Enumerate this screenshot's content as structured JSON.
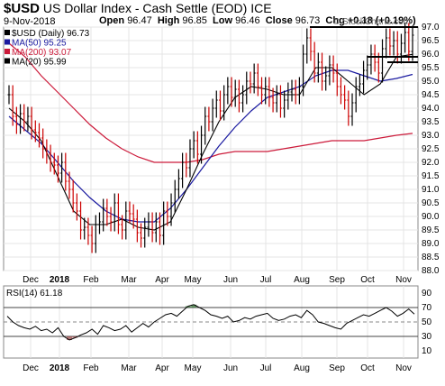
{
  "header": {
    "symbol": "$USD",
    "name": "US Dollar Index - Cash Settle (EOD)",
    "exchange": "ICE",
    "date": "9-Nov-2018",
    "open_label": "Open",
    "open": "96.47",
    "high_label": "High",
    "high": "96.85",
    "low_label": "Low",
    "low": "96.46",
    "close_label": "Close",
    "close": "96.73",
    "chg_label": "Chg",
    "chg": "+0.18 (+0.19%)",
    "copyright": "© StockCharts.com"
  },
  "colors": {
    "up": "#000000",
    "down": "#cc0000",
    "ma50": "#1a1aa0",
    "ma200": "#cc1a3a",
    "ma20": "#000000",
    "rsi_over": "#3a7a3a",
    "rsi_under": "#a05050"
  },
  "chart_data": [
    {
      "type": "line",
      "title": "$USD (Daily) 96.73",
      "legend": [
        {
          "label": "$USD (Daily) 96.73",
          "color": "#000000"
        },
        {
          "label": "MA(50) 95.25",
          "color": "#1a1aa0"
        },
        {
          "label": "MA(200) 93.07",
          "color": "#cc1a3a"
        },
        {
          "label": "MA(20) 95.99",
          "color": "#000000"
        }
      ],
      "legend_position": "top-left",
      "x_tick_labels": [
        "Dec",
        "2018",
        "Feb",
        "Mar",
        "Apr",
        "May",
        "Jun",
        "Jul",
        "Aug",
        "Sep",
        "Oct",
        "Nov"
      ],
      "ylim": [
        88.0,
        97.0
      ],
      "y_ticks": [
        88.0,
        88.5,
        89.0,
        89.5,
        90.0,
        90.5,
        91.0,
        91.5,
        92.0,
        92.5,
        93.0,
        93.5,
        94.0,
        94.5,
        95.0,
        95.5,
        96.0,
        96.5,
        97.0
      ],
      "grid": true,
      "series": [
        {
          "name": "$USD (Daily)",
          "style": "ohlc",
          "values": [
            94.5,
            93.7,
            93.4,
            93.8,
            93.5,
            93.7,
            93.2,
            93.1,
            92.9,
            92.5,
            92.3,
            92.0,
            91.9,
            91.6,
            92.0,
            91.3,
            91.0,
            90.5,
            90.2,
            89.5,
            89.6,
            89.3,
            89.0,
            89.7,
            89.8,
            90.3,
            90.0,
            89.8,
            90.5,
            89.7,
            89.5,
            90.2,
            90.1,
            89.9,
            89.4,
            89.2,
            89.6,
            89.8,
            89.4,
            89.8,
            89.3,
            90.2,
            90.0,
            90.5,
            91.0,
            91.4,
            92.0,
            91.8,
            92.5,
            92.8,
            92.3,
            93.0,
            93.7,
            93.5,
            94.0,
            94.3,
            93.9,
            94.5,
            94.8,
            94.4,
            94.7,
            94.2,
            94.5,
            95.0,
            94.9,
            95.3,
            94.8,
            94.5,
            94.8,
            94.4,
            94.2,
            94.5,
            94.0,
            94.3,
            94.6,
            94.7,
            94.5,
            94.8,
            96.0,
            96.6,
            96.1,
            95.3,
            95.7,
            95.0,
            95.2,
            95.6,
            95.3,
            94.8,
            94.5,
            94.3,
            93.7,
            94.2,
            94.8,
            94.9,
            95.4,
            95.6,
            96.0,
            95.7,
            95.3,
            96.2,
            96.6,
            96.3,
            96.5,
            96.0,
            96.4,
            96.8,
            96.1,
            96.7
          ]
        },
        {
          "name": "MA(50)",
          "values": [
            93.7,
            93.2,
            92.7,
            92.0,
            91.3,
            90.7,
            90.2,
            89.9,
            89.8,
            89.8,
            90.3,
            91.0,
            91.8,
            92.6,
            93.3,
            93.9,
            94.4,
            94.6,
            94.8,
            95.2,
            95.4,
            95.4,
            95.2,
            95.0,
            95.1,
            95.25
          ]
        },
        {
          "name": "MA(200)",
          "values": [
            96.4,
            95.9,
            95.2,
            94.6,
            94.0,
            93.4,
            92.9,
            92.5,
            92.2,
            92.0,
            92.0,
            92.0,
            92.1,
            92.3,
            92.4,
            92.4,
            92.4,
            92.5,
            92.6,
            92.7,
            92.8,
            92.8,
            92.8,
            92.9,
            93.0,
            93.07
          ]
        },
        {
          "name": "MA(20)",
          "values": [
            94.0,
            93.5,
            92.8,
            91.5,
            90.2,
            89.7,
            89.7,
            89.9,
            89.6,
            89.5,
            89.8,
            91.0,
            92.3,
            93.5,
            94.4,
            94.8,
            94.7,
            94.5,
            94.5,
            95.5,
            95.5,
            95.0,
            94.5,
            94.9,
            95.9,
            95.99
          ]
        }
      ]
    },
    {
      "type": "line",
      "title": "RSI(14) 61.18",
      "ylim": [
        0,
        100
      ],
      "y_ticks": [
        10,
        30,
        50,
        70,
        90
      ],
      "reference_lines": [
        30,
        50,
        70
      ],
      "series": [
        {
          "name": "RSI(14)",
          "values": [
            58,
            50,
            45,
            42,
            40,
            44,
            38,
            40,
            35,
            42,
            30,
            25,
            28,
            32,
            35,
            40,
            33,
            45,
            42,
            38,
            40,
            45,
            36,
            42,
            48,
            43,
            50,
            55,
            60,
            62,
            58,
            65,
            72,
            74,
            70,
            66,
            60,
            58,
            55,
            58,
            50,
            52,
            56,
            54,
            58,
            60,
            62,
            55,
            52,
            54,
            58,
            60,
            56,
            66,
            60,
            50,
            48,
            45,
            42,
            40,
            48,
            52,
            56,
            60,
            58,
            62,
            66,
            70,
            65,
            58,
            62,
            68,
            61
          ]
        }
      ]
    }
  ]
}
